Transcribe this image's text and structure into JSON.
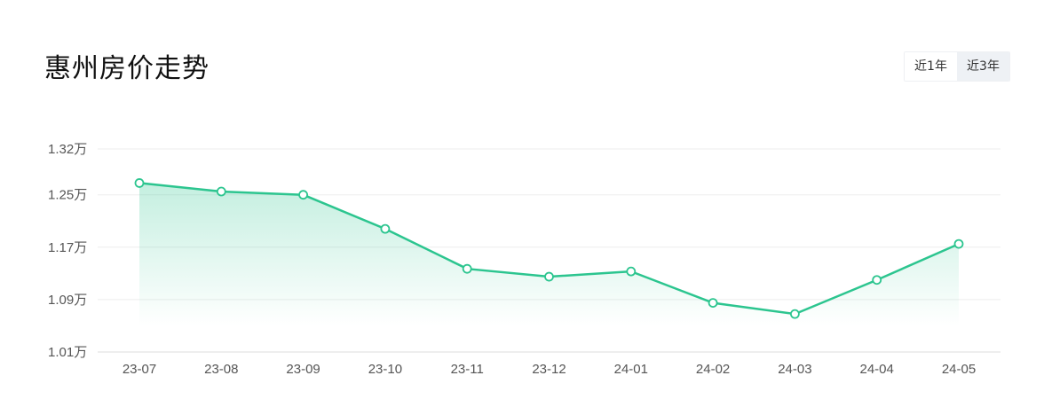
{
  "title": "惠州房价走势",
  "toggle": {
    "options": [
      "近1年",
      "近3年"
    ],
    "active_index": 1
  },
  "colors": {
    "line": "#2cc58f",
    "area": "#2cc58f",
    "grid": "#eeeeee",
    "axis_text": "#555555"
  },
  "chart_data": {
    "type": "area",
    "title": "",
    "xlabel": "",
    "ylabel": "",
    "categories": [
      "23-07",
      "23-08",
      "23-09",
      "23-10",
      "23-11",
      "23-12",
      "24-01",
      "24-02",
      "24-03",
      "24-04",
      "24-05"
    ],
    "values": [
      1.268,
      1.255,
      1.25,
      1.198,
      1.137,
      1.125,
      1.133,
      1.085,
      1.068,
      1.12,
      1.175
    ],
    "value_unit": "万",
    "yticks": [
      1.01,
      1.09,
      1.17,
      1.25,
      1.32
    ],
    "ytick_labels": [
      "1.01万",
      "1.09万",
      "1.17万",
      "1.25万",
      "1.32万"
    ],
    "ylim": [
      1.01,
      1.32
    ],
    "grid": true
  }
}
